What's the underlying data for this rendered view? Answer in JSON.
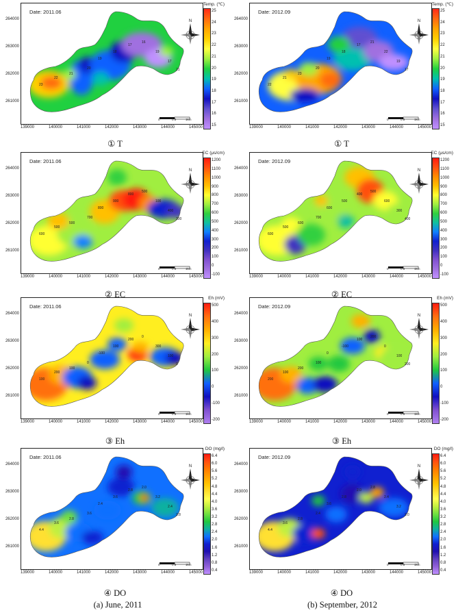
{
  "panels": [
    {
      "id": "t-2011",
      "date": "Date: 2011.06",
      "legend_title": "Temp. (℃)",
      "caption": "① T",
      "scheme": "temp",
      "legend_labels": [
        "25",
        "24",
        "23",
        "22",
        "21",
        "20",
        "19",
        "18",
        "17",
        "16",
        "15"
      ],
      "contours": [
        "23",
        "22",
        "21",
        "20",
        "19",
        "18",
        "17",
        "16",
        "19",
        "17",
        "21"
      ]
    },
    {
      "id": "t-2012",
      "date": "Date: 2012.09",
      "legend_title": "Temp. (℃)",
      "caption": "① T",
      "scheme": "temp2",
      "legend_labels": [
        "25",
        "24",
        "23",
        "22",
        "21",
        "20",
        "19",
        "18",
        "17",
        "16",
        "15"
      ],
      "contours": [
        "22",
        "21",
        "23",
        "20",
        "19",
        "18",
        "17",
        "21",
        "22",
        "19",
        "17"
      ]
    },
    {
      "id": "ec-2011",
      "date": "Date: 2011.06",
      "legend_title": "EC (μs/cm)",
      "caption": "② EC",
      "scheme": "ec",
      "legend_labels": [
        "1200",
        "1100",
        "1000",
        "900",
        "800",
        "700",
        "600",
        "500",
        "400",
        "300",
        "200",
        "100",
        "0",
        "-100"
      ],
      "contours": [
        "600",
        "500",
        "500",
        "700",
        "800",
        "900",
        "800",
        "500",
        "100",
        "400",
        "300"
      ]
    },
    {
      "id": "ec-2012",
      "date": "Date: 2012.09",
      "legend_title": "EC (μs/cm)",
      "caption": "② EC",
      "scheme": "ec2",
      "legend_labels": [
        "1200",
        "1100",
        "1000",
        "900",
        "800",
        "700",
        "600",
        "500",
        "400",
        "300",
        "200",
        "100",
        "0",
        "-100"
      ],
      "contours": [
        "600",
        "500",
        "600",
        "700",
        "600",
        "500",
        "400",
        "500",
        "600",
        "300",
        "400"
      ]
    },
    {
      "id": "eh-2011",
      "date": "Date: 2011.06",
      "legend_title": "Eh (mV)",
      "caption": "③ Eh",
      "scheme": "eh",
      "legend_labels": [
        "500",
        "400",
        "300",
        "200",
        "100",
        "0",
        "-100",
        "-200"
      ],
      "contours": [
        "100",
        "200",
        "100",
        "0",
        "-100",
        "100",
        "200",
        "0",
        "300",
        "100",
        "0"
      ]
    },
    {
      "id": "eh-2012",
      "date": "Date: 2012.09",
      "legend_title": "Eh (mV)",
      "caption": "③ Eh",
      "scheme": "eh2",
      "legend_labels": [
        "500",
        "400",
        "300",
        "200",
        "100",
        "0",
        "-100",
        "-200"
      ],
      "contours": [
        "200",
        "100",
        "200",
        "100",
        "0",
        "-100",
        "100",
        "200",
        "0",
        "100",
        "200"
      ]
    },
    {
      "id": "do-2011",
      "date": "Date: 2011.06",
      "legend_title": "DO (mg/l)",
      "caption": "④ DO",
      "scheme": "do",
      "legend_labels": [
        "6.4",
        "6.0",
        "5.6",
        "5.2",
        "4.8",
        "4.4",
        "4.0",
        "3.6",
        "3.2",
        "2.8",
        "2.4",
        "2.0",
        "1.6",
        "1.2",
        "0.8",
        "0.4"
      ],
      "contours": [
        "4.4",
        "3.6",
        "2.8",
        "3.6",
        "2.4",
        "3.6",
        "2.8",
        "2.0",
        "3.2",
        "2.4",
        "2.8"
      ]
    },
    {
      "id": "do-2012",
      "date": "Date: 2012.09",
      "legend_title": "DO (mg/l)",
      "caption": "④ DO",
      "scheme": "do2",
      "legend_labels": [
        "6.4",
        "6.0",
        "5.6",
        "5.2",
        "4.8",
        "4.4",
        "4.0",
        "3.6",
        "3.2",
        "2.8",
        "2.4",
        "2.0",
        "1.6",
        "1.2",
        "0.8",
        "0.4"
      ],
      "contours": [
        "4.4",
        "3.6",
        "2.8",
        "2.4",
        "3.6",
        "2.8",
        "2.0",
        "2.8",
        "2.4",
        "3.2",
        "2.0"
      ]
    }
  ],
  "axes": {
    "y_ticks": [
      "264000",
      "263000",
      "262000",
      "261000"
    ],
    "x_ticks": [
      "139000",
      "140000",
      "141000",
      "142000",
      "143000",
      "144000",
      "145000"
    ]
  },
  "scale": {
    "zero": "0",
    "half": "0.5",
    "one": "1km"
  },
  "north_label": "N",
  "colormaps": {
    "temp": [
      "#ff2a1a",
      "#ff6a10",
      "#ffa500",
      "#ffd000",
      "#ffff40",
      "#a0f040",
      "#20d040",
      "#00c0b0",
      "#1060ff",
      "#1010c0",
      "#6050d0",
      "#a070e0",
      "#c090ff"
    ],
    "ec": [
      "#ff1a10",
      "#ff5010",
      "#ff8c00",
      "#ffc000",
      "#ffff30",
      "#a0ee40",
      "#30d040",
      "#10c0a0",
      "#1080ff",
      "#1020d0",
      "#4030c0",
      "#8050d0",
      "#a070e0",
      "#c090ff"
    ],
    "eh": [
      "#ff1a10",
      "#ff7010",
      "#ffb000",
      "#ffee20",
      "#a0ee40",
      "#20c840",
      "#1060ff",
      "#1010c0",
      "#8050d0",
      "#b080f0"
    ],
    "do": [
      "#ff1a10",
      "#ff5010",
      "#ff7a00",
      "#ffa000",
      "#ffc400",
      "#ffe030",
      "#ffff50",
      "#c0f040",
      "#70e040",
      "#20c840",
      "#10b0a0",
      "#1070ff",
      "#1020d0",
      "#2010b0",
      "#6040c0",
      "#9060d8",
      "#c090ff"
    ]
  },
  "captions": {
    "left": "(a) June, 2011",
    "right": "(b) September, 2012"
  }
}
